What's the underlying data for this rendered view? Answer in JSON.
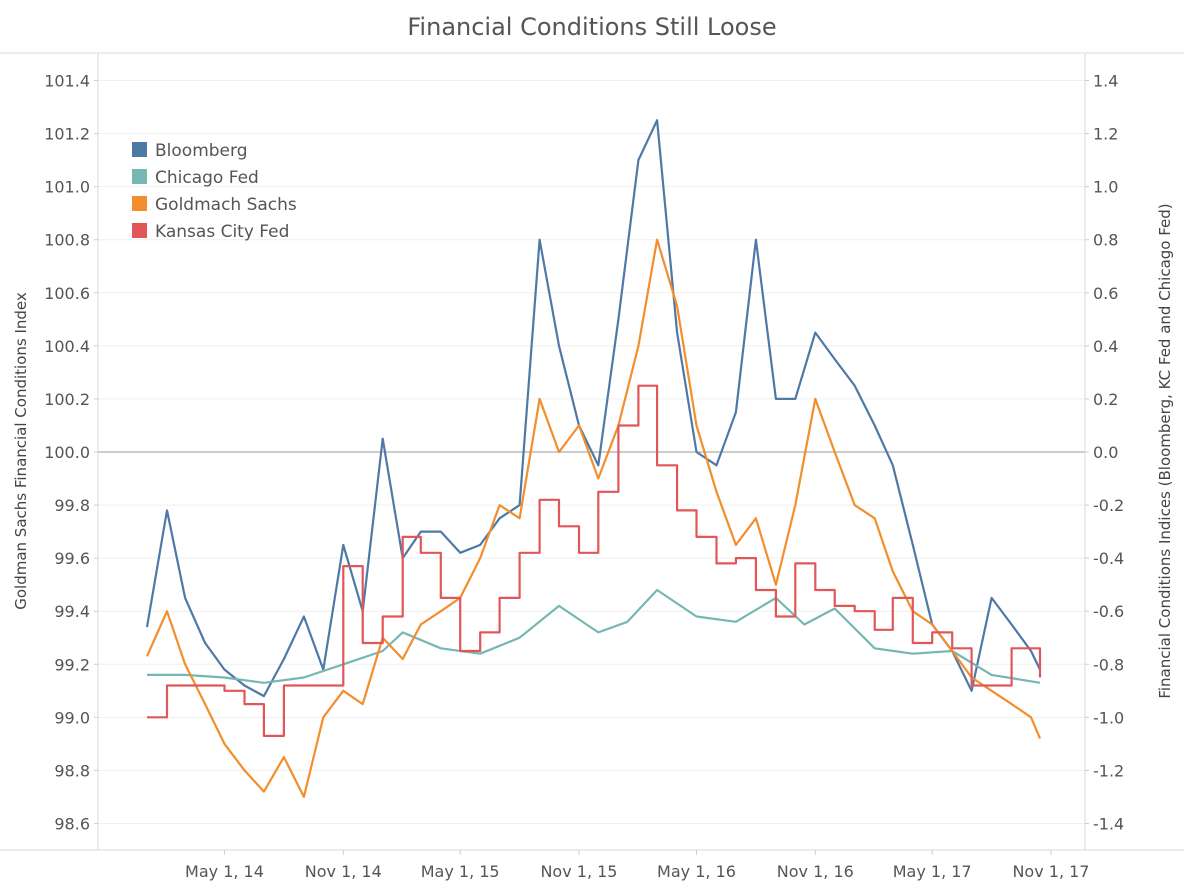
{
  "chart_data": {
    "type": "line",
    "title": "Financial Conditions Still Loose",
    "ylabel_left": "Goldman Sachs Financial Conditions Index",
    "ylabel_right": "Financial Conditions Indices (Bloomberg, KC Fed and Chicago Fed)",
    "ylim_left": [
      98.5,
      101.5
    ],
    "ylim_right": [
      -1.5,
      1.5
    ],
    "yticks_left": [
      "101.4",
      "101.2",
      "101.0",
      "100.8",
      "100.6",
      "100.4",
      "100.2",
      "100.0",
      "99.8",
      "99.6",
      "99.4",
      "99.2",
      "99.0",
      "98.8",
      "98.6"
    ],
    "yticks_right": [
      "1.4",
      "1.2",
      "1.0",
      "0.8",
      "0.6",
      "0.4",
      "0.2",
      "0.0",
      "-0.2",
      "-0.4",
      "-0.6",
      "-0.8",
      "-1.0",
      "-1.2",
      "-1.4"
    ],
    "x_range": [
      "2014-01-01",
      "2017-10-15"
    ],
    "xticks": [
      {
        "date": "2014-05-01",
        "label": "May 1, 14"
      },
      {
        "date": "2014-11-01",
        "label": "Nov 1, 14"
      },
      {
        "date": "2015-05-01",
        "label": "May 1, 15"
      },
      {
        "date": "2015-11-01",
        "label": "Nov 1, 15"
      },
      {
        "date": "2016-05-01",
        "label": "May 1, 16"
      },
      {
        "date": "2016-11-01",
        "label": "Nov 1, 16"
      },
      {
        "date": "2017-05-01",
        "label": "May 1, 17"
      },
      {
        "date": "2017-11-01",
        "label": "Nov 1, 17"
      }
    ],
    "legend_position": "top-left",
    "grid": true,
    "series": [
      {
        "name": "Bloomberg",
        "axis": "right",
        "color": "#4e79a7",
        "step": false,
        "x": [
          "2014-01-01",
          "2014-02-01",
          "2014-03-01",
          "2014-04-01",
          "2014-05-01",
          "2014-06-01",
          "2014-07-01",
          "2014-08-01",
          "2014-09-01",
          "2014-10-01",
          "2014-11-01",
          "2014-12-01",
          "2015-01-01",
          "2015-02-01",
          "2015-03-01",
          "2015-04-01",
          "2015-05-01",
          "2015-06-01",
          "2015-07-01",
          "2015-08-01",
          "2015-09-01",
          "2015-10-01",
          "2015-11-01",
          "2015-12-01",
          "2016-01-01",
          "2016-02-01",
          "2016-03-01",
          "2016-04-01",
          "2016-05-01",
          "2016-06-01",
          "2016-07-01",
          "2016-08-01",
          "2016-09-01",
          "2016-10-01",
          "2016-11-01",
          "2016-12-01",
          "2017-01-01",
          "2017-02-01",
          "2017-03-01",
          "2017-04-01",
          "2017-05-01",
          "2017-06-01",
          "2017-07-01",
          "2017-08-01",
          "2017-09-01",
          "2017-10-01",
          "2017-10-15"
        ],
        "values": [
          -0.66,
          -0.22,
          -0.55,
          -0.72,
          -0.82,
          -0.88,
          -0.92,
          -0.78,
          -0.62,
          -0.82,
          -0.35,
          -0.6,
          0.05,
          -0.4,
          -0.3,
          -0.3,
          -0.38,
          -0.35,
          -0.25,
          -0.2,
          0.8,
          0.4,
          0.1,
          -0.05,
          0.5,
          1.1,
          1.25,
          0.45,
          0.0,
          -0.05,
          0.15,
          0.8,
          0.2,
          0.2,
          0.45,
          0.35,
          0.25,
          0.1,
          -0.05,
          -0.35,
          -0.65,
          -0.75,
          -0.9,
          -0.55,
          -0.65,
          -0.75,
          -0.82
        ]
      },
      {
        "name": "Chicago Fed",
        "axis": "right",
        "color": "#76b7b2",
        "step": false,
        "x": [
          "2014-01-01",
          "2014-03-01",
          "2014-05-01",
          "2014-07-01",
          "2014-09-01",
          "2014-11-01",
          "2015-01-01",
          "2015-02-01",
          "2015-04-01",
          "2015-06-01",
          "2015-08-01",
          "2015-10-01",
          "2015-12-01",
          "2016-01-15",
          "2016-03-01",
          "2016-05-01",
          "2016-07-01",
          "2016-09-01",
          "2016-10-15",
          "2016-12-01",
          "2017-02-01",
          "2017-04-01",
          "2017-06-01",
          "2017-08-01",
          "2017-10-15"
        ],
        "values": [
          -0.84,
          -0.84,
          -0.85,
          -0.87,
          -0.85,
          -0.8,
          -0.75,
          -0.68,
          -0.74,
          -0.76,
          -0.7,
          -0.58,
          -0.68,
          -0.64,
          -0.52,
          -0.62,
          -0.64,
          -0.55,
          -0.65,
          -0.59,
          -0.74,
          -0.76,
          -0.75,
          -0.84,
          -0.87
        ]
      },
      {
        "name": "Goldmach Sachs",
        "axis": "left",
        "color": "#f28e2b",
        "step": false,
        "x": [
          "2014-01-01",
          "2014-02-01",
          "2014-03-01",
          "2014-04-01",
          "2014-05-01",
          "2014-06-01",
          "2014-07-01",
          "2014-08-01",
          "2014-09-01",
          "2014-10-01",
          "2014-11-01",
          "2014-12-01",
          "2015-01-01",
          "2015-02-01",
          "2015-03-01",
          "2015-04-01",
          "2015-05-01",
          "2015-06-01",
          "2015-07-01",
          "2015-08-01",
          "2015-09-01",
          "2015-10-01",
          "2015-11-01",
          "2015-12-01",
          "2016-01-01",
          "2016-02-01",
          "2016-03-01",
          "2016-04-01",
          "2016-05-01",
          "2016-06-01",
          "2016-07-01",
          "2016-08-01",
          "2016-09-01",
          "2016-10-01",
          "2016-11-01",
          "2016-12-01",
          "2017-01-01",
          "2017-02-01",
          "2017-03-01",
          "2017-04-01",
          "2017-05-01",
          "2017-06-01",
          "2017-07-01",
          "2017-08-01",
          "2017-09-01",
          "2017-10-01",
          "2017-10-15"
        ],
        "values": [
          99.23,
          99.4,
          99.2,
          99.05,
          98.9,
          98.8,
          98.72,
          98.85,
          98.7,
          99.0,
          99.1,
          99.05,
          99.3,
          99.22,
          99.35,
          99.4,
          99.45,
          99.6,
          99.8,
          99.75,
          100.2,
          100.0,
          100.1,
          99.9,
          100.1,
          100.4,
          100.8,
          100.55,
          100.1,
          99.85,
          99.65,
          99.75,
          99.5,
          99.8,
          100.2,
          100.0,
          99.8,
          99.75,
          99.55,
          99.4,
          99.35,
          99.25,
          99.15,
          99.1,
          99.05,
          99.0,
          98.92
        ]
      },
      {
        "name": "Kansas City Fed",
        "axis": "right",
        "color": "#e15759",
        "step": true,
        "x": [
          "2014-01-01",
          "2014-02-01",
          "2014-03-01",
          "2014-04-01",
          "2014-05-01",
          "2014-06-01",
          "2014-07-01",
          "2014-08-01",
          "2014-09-01",
          "2014-10-01",
          "2014-11-01",
          "2014-12-01",
          "2015-01-01",
          "2015-02-01",
          "2015-03-01",
          "2015-04-01",
          "2015-05-01",
          "2015-06-01",
          "2015-07-01",
          "2015-08-01",
          "2015-09-01",
          "2015-10-01",
          "2015-11-01",
          "2015-12-01",
          "2016-01-01",
          "2016-02-01",
          "2016-03-01",
          "2016-04-01",
          "2016-05-01",
          "2016-06-01",
          "2016-07-01",
          "2016-08-01",
          "2016-09-01",
          "2016-10-01",
          "2016-11-01",
          "2016-12-01",
          "2017-01-01",
          "2017-02-01",
          "2017-03-01",
          "2017-04-01",
          "2017-05-01",
          "2017-06-01",
          "2017-07-01",
          "2017-08-01",
          "2017-09-01",
          "2017-10-15"
        ],
        "values": [
          -1.0,
          -0.88,
          -0.88,
          -0.88,
          -0.9,
          -0.95,
          -1.07,
          -0.88,
          -0.88,
          -0.88,
          -0.43,
          -0.72,
          -0.62,
          -0.32,
          -0.38,
          -0.55,
          -0.75,
          -0.68,
          -0.55,
          -0.38,
          -0.18,
          -0.28,
          -0.38,
          -0.15,
          0.1,
          0.25,
          -0.05,
          -0.22,
          -0.32,
          -0.42,
          -0.4,
          -0.52,
          -0.62,
          -0.42,
          -0.52,
          -0.58,
          -0.6,
          -0.67,
          -0.55,
          -0.72,
          -0.68,
          -0.74,
          -0.88,
          -0.88,
          -0.74,
          -0.85
        ]
      }
    ]
  }
}
